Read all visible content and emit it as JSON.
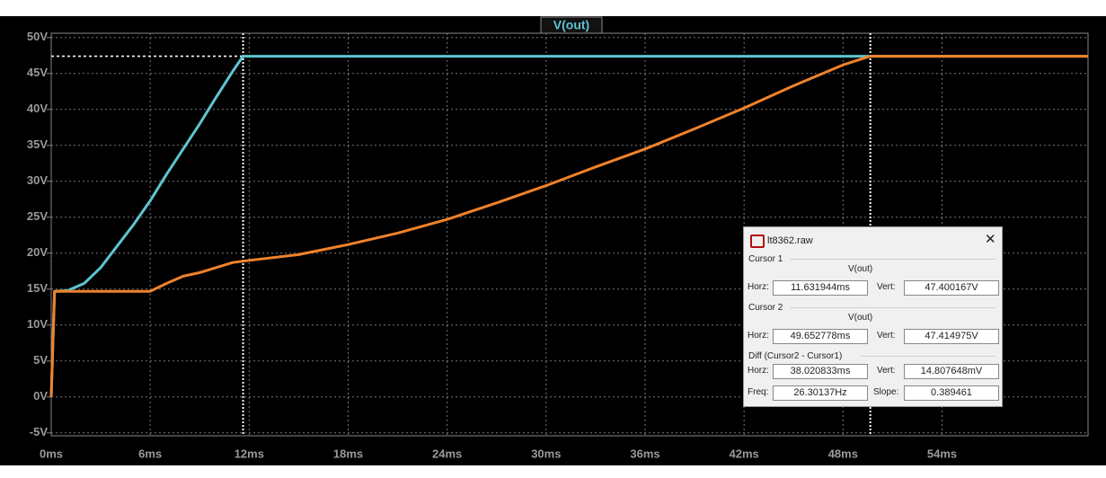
{
  "chart_data": {
    "type": "line",
    "title": "V(out)",
    "xlim": [
      0,
      62.85
    ],
    "ylim": [
      -5.4,
      50.6
    ],
    "xticks": [
      {
        "value": 0,
        "label": "0ms"
      },
      {
        "value": 6,
        "label": "6ms"
      },
      {
        "value": 12,
        "label": "12ms"
      },
      {
        "value": 18,
        "label": "18ms"
      },
      {
        "value": 24,
        "label": "24ms"
      },
      {
        "value": 30,
        "label": "30ms"
      },
      {
        "value": 36,
        "label": "36ms"
      },
      {
        "value": 42,
        "label": "42ms"
      },
      {
        "value": 48,
        "label": "48ms"
      },
      {
        "value": 54,
        "label": "54ms"
      }
    ],
    "yticks": [
      {
        "value": -5,
        "label": "-5V"
      },
      {
        "value": 0,
        "label": "0V"
      },
      {
        "value": 5,
        "label": "5V"
      },
      {
        "value": 10,
        "label": "10V"
      },
      {
        "value": 15,
        "label": "15V"
      },
      {
        "value": 20,
        "label": "20V"
      },
      {
        "value": 25,
        "label": "25V"
      },
      {
        "value": 30,
        "label": "30V"
      },
      {
        "value": 35,
        "label": "35V"
      },
      {
        "value": 40,
        "label": "40V"
      },
      {
        "value": 45,
        "label": "45V"
      },
      {
        "value": 50,
        "label": "50V"
      }
    ],
    "grid": true,
    "series": [
      {
        "color": "#5ec4d2",
        "x": [
          0,
          0.2,
          1,
          2,
          3,
          4,
          5,
          6,
          7,
          8,
          9,
          10,
          11,
          11.63,
          12,
          62.85
        ],
        "values": [
          0,
          14.7,
          14.8,
          15.8,
          18,
          21,
          24,
          27.3,
          31,
          34.5,
          38,
          41.7,
          45.3,
          47.4,
          47.4,
          47.4
        ]
      },
      {
        "color": "#f0822a",
        "x": [
          0,
          0.2,
          6,
          7,
          8,
          9,
          10,
          11,
          12,
          15,
          18,
          21,
          24,
          27,
          30,
          33,
          36,
          39,
          42,
          45,
          48,
          49.65,
          62.85
        ],
        "values": [
          0,
          14.7,
          14.7,
          15.8,
          16.8,
          17.3,
          18,
          18.7,
          19,
          19.8,
          21.2,
          22.8,
          24.7,
          27,
          29.4,
          32,
          34.5,
          37.3,
          40.2,
          43.3,
          46.2,
          47.4,
          47.4
        ]
      }
    ],
    "cursors": [
      {
        "x": 11.631944,
        "y": 47.400167
      },
      {
        "x": 49.652778,
        "y": 47.414975
      }
    ]
  },
  "cursor_window": {
    "title": "lt8362.raw",
    "cursor1": {
      "label": "Cursor 1",
      "trace": "V(out)",
      "horz_label": "Horz:",
      "horz": "11.631944ms",
      "vert_label": "Vert:",
      "vert": "47.400167V"
    },
    "cursor2": {
      "label": "Cursor 2",
      "trace": "V(out)",
      "horz_label": "Horz:",
      "horz": "49.652778ms",
      "vert_label": "Vert:",
      "vert": "47.414975V"
    },
    "diff": {
      "label": "Diff (Cursor2 - Cursor1)",
      "horz_label": "Horz:",
      "horz": "38.020833ms",
      "vert_label": "Vert:",
      "vert": "14.807648mV",
      "freq_label": "Freq:",
      "freq": "26.30137Hz",
      "slope_label": "Slope:",
      "slope": "0.389461"
    }
  }
}
